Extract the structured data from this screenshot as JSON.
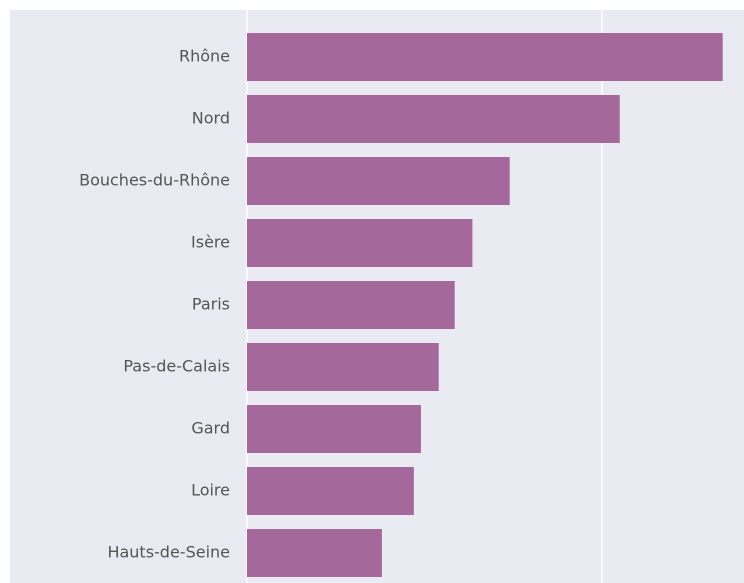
{
  "chart_data": {
    "type": "barh",
    "categories": [
      "Rhône",
      "Nord",
      "Bouches-du-Rhône",
      "Isère",
      "Paris",
      "Pas-de-Calais",
      "Gard",
      "Loire",
      "Hauts-de-Seine"
    ],
    "values": [
      134,
      105,
      74,
      63.5,
      58.5,
      54,
      49,
      47,
      38
    ],
    "color": "#a5689a",
    "xlim": [
      0,
      140
    ],
    "xticks": [
      0,
      100
    ],
    "grid": true
  }
}
